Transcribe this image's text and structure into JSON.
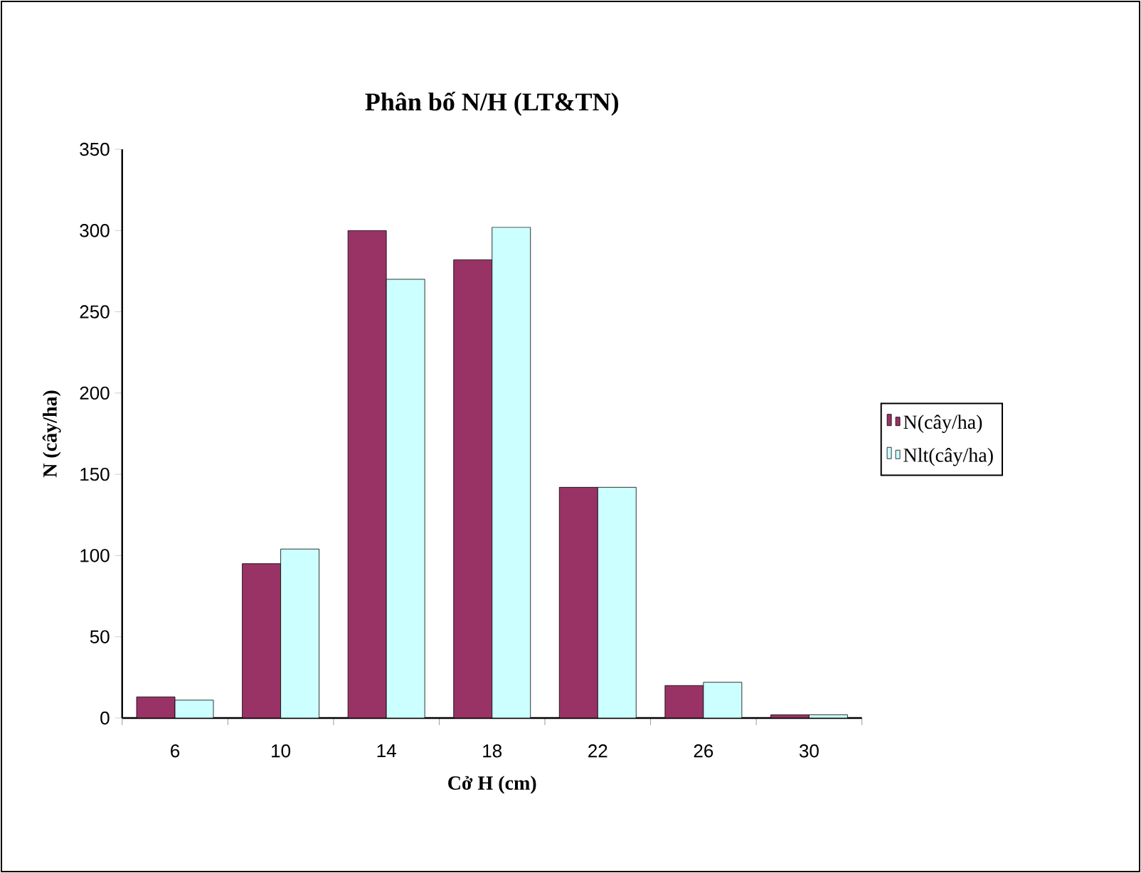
{
  "chart_data": {
    "type": "bar",
    "title": "Phân bố N/H (LT&TN)",
    "xlabel": "Cở H (cm)",
    "ylabel": "N (cây/ha)",
    "categories": [
      "6",
      "10",
      "14",
      "18",
      "22",
      "26",
      "30"
    ],
    "series": [
      {
        "name": "N(cây/ha)",
        "color": "#993366",
        "values": [
          13,
          95,
          300,
          282,
          142,
          20,
          2
        ]
      },
      {
        "name": "Nlt(cây/ha)",
        "color": "#ccffff",
        "values": [
          11,
          104,
          270,
          302,
          142,
          22,
          2
        ]
      }
    ],
    "ylim": [
      0,
      350
    ],
    "yticks": [
      0,
      50,
      100,
      150,
      200,
      250,
      300,
      350
    ],
    "grid": false,
    "legend": "right"
  }
}
